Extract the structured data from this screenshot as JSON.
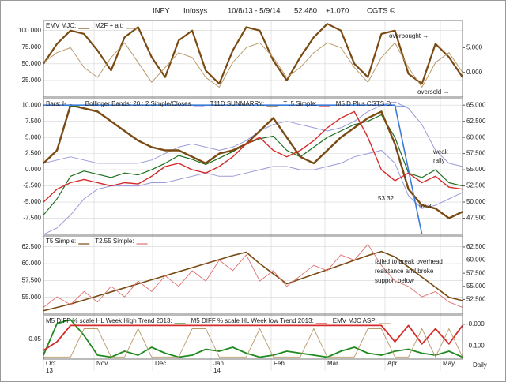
{
  "header": [
    "INFY",
    "Infosys",
    "10/8/13 - 5/9/14",
    "52.480",
    "+1.070",
    "CGTS ©"
  ],
  "x_axis": {
    "labels": [
      "Oct",
      "Nov",
      "Dec",
      "Jan",
      "Feb",
      "Mar",
      "Apr",
      "May"
    ],
    "years": [
      "13",
      "14"
    ],
    "period": "Daily"
  },
  "chart_data": [
    {
      "type": "line",
      "ylim": [
        0,
        115
      ],
      "yticks": [
        {
          "value": 100,
          "label": "100.000"
        },
        {
          "value": 75,
          "label": "75.000"
        },
        {
          "value": 50,
          "label": "50.000"
        },
        {
          "value": 25,
          "label": "25.000"
        }
      ],
      "y2lim": [
        -5,
        10.5
      ],
      "y2ticks": [
        {
          "value": 5,
          "label": "5.000"
        },
        {
          "value": 0,
          "label": "0.000"
        }
      ],
      "grid": true,
      "series": [
        {
          "name": "EMV MJC:",
          "color": "#7a4a12",
          "width": 2.2,
          "values": [
            50,
            80,
            100,
            95,
            70,
            40,
            90,
            105,
            60,
            30,
            85,
            100,
            40,
            20,
            70,
            105,
            100,
            55,
            25,
            60,
            90,
            110,
            100,
            50,
            30,
            95,
            100,
            35,
            20,
            80,
            60,
            30
          ]
        },
        {
          "name": "M2F + alt:",
          "color": "#b89a6a",
          "width": 1,
          "axis": "y2",
          "values": [
            2,
            4,
            5,
            1,
            -1,
            3,
            6,
            2,
            -2,
            1,
            4,
            3,
            -1,
            -3,
            2,
            5,
            6,
            3,
            -1,
            1,
            4,
            6,
            5,
            1,
            -2,
            3,
            6,
            1,
            -3,
            2,
            4,
            0
          ]
        }
      ],
      "annotations": [
        {
          "text": "overbought →",
          "color": "#7a4a12"
        },
        {
          "text": "oversold →",
          "color": "#7a4a12"
        }
      ]
    },
    {
      "type": "line",
      "ylim": [
        -10,
        11
      ],
      "yticks": [
        {
          "value": 10,
          "label": "10.000"
        },
        {
          "value": 7.5,
          "label": "7.500"
        },
        {
          "value": 5,
          "label": "5.000"
        },
        {
          "value": 2.5,
          "label": "2.500"
        },
        {
          "value": 0,
          "label": "0.000"
        },
        {
          "value": -2.5,
          "label": "-2.500"
        },
        {
          "value": -5,
          "label": "-5.000"
        },
        {
          "value": -7.5,
          "label": "-7.500"
        }
      ],
      "y2lim": [
        45,
        66
      ],
      "y2ticks": [
        {
          "value": 65,
          "label": "65.000"
        },
        {
          "value": 62.5,
          "label": "62.500"
        },
        {
          "value": 60,
          "label": "60.000"
        },
        {
          "value": 57.5,
          "label": "57.500"
        },
        {
          "value": 55,
          "label": "55.000"
        },
        {
          "value": 52.5,
          "label": "52.500"
        },
        {
          "value": 50,
          "label": "50.000"
        },
        {
          "value": 47.5,
          "label": "47.500"
        }
      ],
      "grid": true,
      "series": [
        {
          "name": "Bars: I-",
          "color": "#1f6e1f",
          "width": 1.2,
          "axis": "y2",
          "values": [
            48,
            50.5,
            54,
            54.8,
            54.3,
            53.8,
            54.5,
            54.2,
            55,
            56,
            57.2,
            56.6,
            55.8,
            56.8,
            57.8,
            59,
            59.8,
            60.2,
            58,
            57,
            58.5,
            60,
            61,
            62,
            62.5,
            63.5,
            60,
            54.5,
            53.8,
            55,
            53,
            52.5
          ]
        },
        {
          "name": "Bollinger Bands: 20 : 2 Simple/Closes",
          "color": "#9a9ad8",
          "width": 1,
          "axis": "y2",
          "upper": [
            56,
            56.5,
            57,
            56.5,
            56,
            56,
            56,
            56,
            56.5,
            57.5,
            58.5,
            59,
            58.5,
            58,
            58.5,
            59.5,
            61,
            62,
            62.5,
            62,
            61.5,
            61,
            61.5,
            62.5,
            64,
            65,
            65.5,
            64.5,
            62,
            58,
            56,
            55.5
          ],
          "lower": [
            45,
            46,
            48,
            50.5,
            52,
            52.5,
            52.5,
            52.5,
            53,
            53,
            53.5,
            54,
            54.5,
            54,
            54,
            54.5,
            55,
            55.5,
            55.5,
            55,
            55,
            55.5,
            56,
            57,
            57.5,
            58,
            56,
            51,
            49,
            49.5,
            50.5,
            51.5
          ]
        },
        {
          "name": "T11D SUNMARRY:",
          "color": "#7a4a12",
          "width": 2.4,
          "values": [
            1,
            3,
            10,
            9.5,
            9,
            7.5,
            6,
            4.5,
            3.5,
            3,
            3,
            2,
            1,
            2.5,
            3,
            4,
            6,
            8,
            5,
            2,
            1,
            3,
            5,
            6.5,
            8,
            9,
            4,
            -3,
            -5.5,
            -6,
            -7.5,
            -6.5
          ]
        },
        {
          "name": "T .5 Simple:",
          "color": "#d62a2a",
          "width": 1.4,
          "axis": "y2",
          "values": [
            50,
            52,
            53,
            53.5,
            53,
            52.5,
            53,
            52.8,
            54,
            55.5,
            56,
            55,
            54.5,
            55.5,
            57,
            59,
            60,
            58,
            57,
            58,
            59.5,
            61.5,
            63,
            64,
            60,
            55,
            53.3,
            54.5,
            53,
            54,
            52.3,
            52
          ]
        },
        {
          "name": "M5 D Plus CGTS D:",
          "color": "#3a7ad8",
          "width": 1.6,
          "values": [
            10,
            10,
            10,
            10,
            10,
            10,
            10,
            10,
            10,
            10,
            10,
            10,
            10,
            10,
            10,
            10,
            10,
            10,
            10,
            10,
            10,
            10,
            10,
            10,
            10,
            10,
            10,
            0,
            -10,
            -10,
            -10,
            -10
          ]
        }
      ],
      "annotations": [
        {
          "text": "weak",
          "color": "#d62a2a"
        },
        {
          "text": "rally",
          "color": "#d62a2a"
        },
        {
          "text": "53.32",
          "color": "#d62a2a"
        },
        {
          "text": "52.3",
          "color": "#d62a2a"
        }
      ]
    },
    {
      "type": "line",
      "ylim": [
        52.5,
        64.1
      ],
      "yticks": [
        {
          "value": 62.5,
          "label": "62.500"
        },
        {
          "value": 60,
          "label": "60.000"
        },
        {
          "value": 57.5,
          "label": "57.500"
        },
        {
          "value": 55,
          "label": "55.000"
        }
      ],
      "y2lim": [
        49.7,
        64.6
      ],
      "y2ticks": [
        {
          "value": 62.5,
          "label": "62.500"
        },
        {
          "value": 60,
          "label": "60.000"
        },
        {
          "value": 57.5,
          "label": "57.500"
        },
        {
          "value": 55,
          "label": "55.000"
        },
        {
          "value": 52.5,
          "label": "52.500"
        }
      ],
      "grid": true,
      "series": [
        {
          "name": "T5 Simple:",
          "color": "#7a4a12",
          "width": 1.6,
          "values": [
            53,
            53.5,
            54,
            54.6,
            55.2,
            55.8,
            56.4,
            57,
            57.6,
            58.2,
            58.8,
            59.4,
            60,
            60.6,
            61.2,
            61.7,
            60,
            58.5,
            57,
            57.7,
            58.4,
            59.1,
            59.8,
            60.5,
            61.2,
            61.8,
            61,
            59.5,
            58,
            56.5,
            55,
            54.5
          ]
        },
        {
          "name": "T2.55 Simple:",
          "color": "#e07070",
          "width": 0.9,
          "axis": "y2",
          "values": [
            51,
            53,
            51.5,
            54,
            52,
            55,
            53,
            56,
            54,
            57,
            55,
            58,
            56,
            60,
            58,
            61,
            56,
            58,
            55,
            57,
            59,
            58,
            61,
            60,
            63,
            59,
            56,
            55,
            53,
            54,
            52,
            51
          ]
        }
      ],
      "annotations": [
        {
          "text": "failed to break overhead",
          "color": "#222"
        },
        {
          "text": "resistance and broke",
          "color": "#222"
        },
        {
          "text": "support below",
          "color": "#222"
        }
      ]
    },
    {
      "type": "line",
      "ylim": [
        0,
        0.11
      ],
      "yticks": [
        0.05
      ],
      "y2lim": [
        -0.16,
        0.04
      ],
      "y2ticks": [
        {
          "value": 0,
          "label": "-0.000"
        },
        {
          "value": -0.1,
          "label": "-0.100"
        }
      ],
      "grid": true,
      "series": [
        {
          "name": "M5 DIFF % scale HL Week High Trend 2013:",
          "color": "#1f8a1f",
          "width": 1.8,
          "values": [
            0.01,
            0.09,
            0.1,
            0.06,
            0.01,
            0.005,
            0.02,
            0.01,
            0.03,
            0.015,
            0.005,
            0.01,
            0.025,
            0.02,
            0.03,
            0.015,
            0.005,
            0.01,
            0.02,
            0.015,
            0.01,
            0.005,
            0.02,
            0.03,
            0.015,
            0.01,
            0.02,
            0.025,
            0.015,
            0.01,
            0.02,
            0.005
          ]
        },
        {
          "name": "M5 DIFF % scale HL Week low Trend 2013:",
          "color": "#d62a2a",
          "width": 1.8,
          "axis": "y2",
          "values": [
            -0.12,
            -0.08,
            -0.005,
            -0.005,
            -0.005,
            -0.005,
            -0.005,
            -0.005,
            -0.005,
            -0.005,
            -0.005,
            -0.005,
            -0.005,
            -0.005,
            -0.005,
            -0.005,
            -0.005,
            -0.005,
            -0.005,
            -0.005,
            -0.005,
            -0.005,
            -0.005,
            -0.005,
            -0.005,
            -0.005,
            -0.08,
            -0.005,
            -0.09,
            -0.02,
            -0.09,
            -0.005
          ]
        },
        {
          "name": "EMV MJC ASP:",
          "color": "#b89a6a",
          "width": 0.9,
          "axis": "y2",
          "values": [
            -0.15,
            -0.15,
            -0.15,
            -0.02,
            -0.02,
            -0.15,
            -0.15,
            -0.02,
            -0.15,
            -0.15,
            -0.15,
            -0.02,
            -0.02,
            -0.15,
            -0.15,
            -0.15,
            -0.02,
            -0.15,
            -0.15,
            -0.15,
            -0.02,
            -0.15,
            -0.15,
            -0.15,
            -0.02,
            -0.02,
            -0.15,
            -0.15,
            -0.02,
            -0.15,
            -0.02,
            -0.15
          ]
        }
      ],
      "annotations": []
    }
  ]
}
